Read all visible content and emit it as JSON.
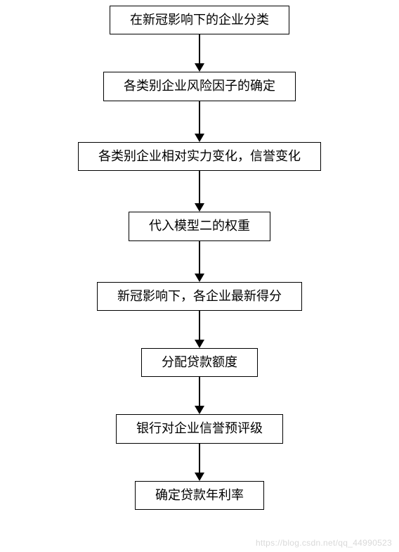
{
  "flowchart": {
    "type": "flowchart",
    "background_color": "#ffffff",
    "node_border_color": "#000000",
    "node_border_width": 1.5,
    "node_fill_color": "#ffffff",
    "node_text_color": "#000000",
    "node_fontsize": 18,
    "node_font_family": "SimSun",
    "node_padding_x": 28,
    "node_padding_y": 8,
    "arrow_color": "#000000",
    "arrow_line_width": 2,
    "arrow_head_width": 14,
    "arrow_head_height": 12,
    "nodes": [
      {
        "id": "n1",
        "label": "在新冠影响下的企业分类"
      },
      {
        "id": "n2",
        "label": "各类别企业风险因子的确定"
      },
      {
        "id": "n3",
        "label": "各类别企业相对实力变化，信誉变化"
      },
      {
        "id": "n4",
        "label": "代入模型二的权重"
      },
      {
        "id": "n5",
        "label": "新冠影响下，各企业最新得分"
      },
      {
        "id": "n6",
        "label": "分配贷款额度"
      },
      {
        "id": "n7",
        "label": "银行对企业信誉预评级"
      },
      {
        "id": "n8",
        "label": "确定贷款年利率"
      }
    ],
    "edges": [
      {
        "from": "n1",
        "to": "n2",
        "length": 42
      },
      {
        "from": "n2",
        "to": "n3",
        "length": 47
      },
      {
        "from": "n3",
        "to": "n4",
        "length": 47
      },
      {
        "from": "n4",
        "to": "n5",
        "length": 47
      },
      {
        "from": "n5",
        "to": "n6",
        "length": 42
      },
      {
        "from": "n6",
        "to": "n7",
        "length": 42
      },
      {
        "from": "n7",
        "to": "n8",
        "length": 42
      }
    ]
  },
  "watermark": {
    "text": "https://blog.csdn.net/qq_44990523",
    "color": "#d9d9d9",
    "fontsize": 12
  }
}
